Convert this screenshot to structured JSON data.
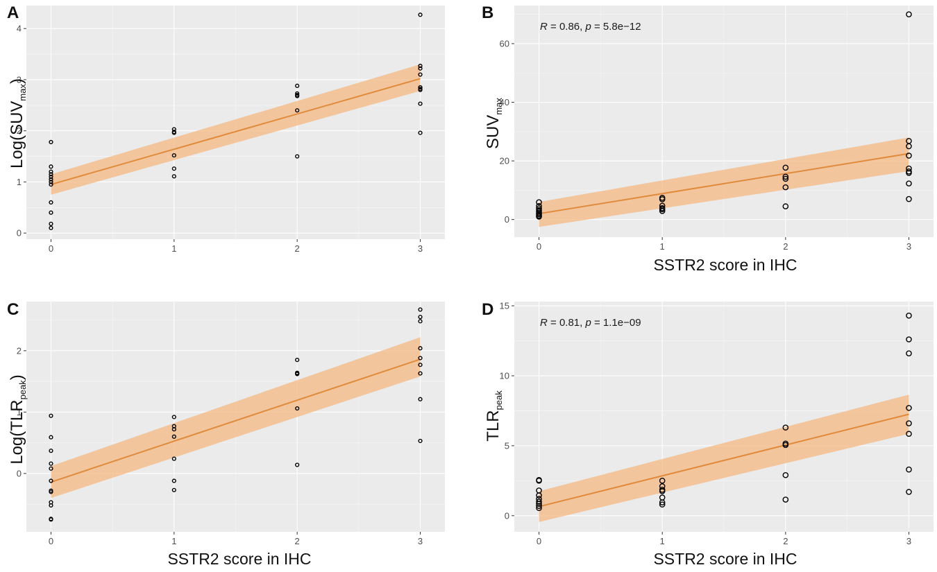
{
  "colors": {
    "panel_background": "#ebebeb",
    "grid_major": "#ffffff",
    "grid_minor": "#f5f5f5",
    "fit_line": "#e08a3c",
    "confidence_band": "#f4b882",
    "points": "#000000"
  },
  "chart_data": [
    {
      "panel": "A",
      "type": "scatter",
      "title": "",
      "xlabel": "",
      "ylabel_main": "Log(SUV",
      "ylabel_sub": "max",
      "ylabel_close": ")",
      "annotation": null,
      "xlim": [
        -0.2,
        3.2
      ],
      "ylim": [
        -0.12,
        4.45
      ],
      "xticks": [
        0,
        1,
        2,
        3
      ],
      "yticks": [
        0,
        1,
        2,
        3,
        4
      ],
      "grid": true,
      "points": {
        "x": [
          0,
          0,
          0,
          0,
          0,
          0,
          0,
          0,
          0,
          0,
          0,
          0,
          1,
          1,
          1,
          1,
          1,
          1,
          2,
          2,
          2,
          2,
          2,
          2,
          3,
          3,
          3,
          3,
          3,
          3,
          3,
          3,
          3
        ],
        "y": [
          1.78,
          1.3,
          1.2,
          1.15,
          1.1,
          1.05,
          0.95,
          0.6,
          0.4,
          0.18,
          0.1,
          1.0,
          2.03,
          1.96,
          1.52,
          1.26,
          1.11,
          1.98,
          2.88,
          2.73,
          2.68,
          2.4,
          1.5,
          2.7,
          4.27,
          3.27,
          3.22,
          3.1,
          2.85,
          2.8,
          2.53,
          1.96,
          2.82
        ]
      },
      "fit": {
        "x": [
          0,
          3
        ],
        "y": [
          0.95,
          3.02
        ]
      },
      "band": {
        "x": [
          0,
          3
        ],
        "lower": [
          0.75,
          2.78
        ],
        "upper": [
          1.15,
          3.3
        ]
      }
    },
    {
      "panel": "B",
      "type": "scatter",
      "title": "",
      "xlabel": "SSTR2 score in IHC",
      "ylabel_main": "SUV",
      "ylabel_sub": "max",
      "ylabel_close": "",
      "annotation": {
        "r_label": "R",
        "r_text": " = 0.86, ",
        "p_label": "p",
        "p_text": " = 5.8e−12"
      },
      "xlim": [
        -0.2,
        3.2
      ],
      "ylim": [
        -6,
        73
      ],
      "xticks": [
        0,
        1,
        2,
        3
      ],
      "yticks": [
        0,
        20,
        40,
        60
      ],
      "grid": true,
      "points": {
        "x": [
          0,
          0,
          0,
          0,
          0,
          0,
          0,
          0,
          0,
          1,
          1,
          1,
          1,
          1,
          1,
          2,
          2,
          2,
          2,
          2,
          3,
          3,
          3,
          3,
          3,
          3,
          3,
          3,
          3
        ],
        "y": [
          5.9,
          4.6,
          3.8,
          3.2,
          2.7,
          2.2,
          1.8,
          1.3,
          1.0,
          7.4,
          6.9,
          4.7,
          3.9,
          3.5,
          2.9,
          17.7,
          14.6,
          13.9,
          11.0,
          4.5,
          70.0,
          26.8,
          25.0,
          21.8,
          17.4,
          16.4,
          15.9,
          12.3,
          7.0
        ]
      },
      "fit": {
        "x": [
          0,
          3
        ],
        "y": [
          2.0,
          22.5
        ]
      },
      "band": {
        "x": [
          0,
          3
        ],
        "lower": [
          -2.5,
          16.5
        ],
        "upper": [
          6.0,
          28.0
        ]
      }
    },
    {
      "panel": "C",
      "type": "scatter",
      "title": "",
      "xlabel": "SSTR2 score in IHC",
      "ylabel_main": "Log(TLR",
      "ylabel_sub": "peak",
      "ylabel_close": ")",
      "annotation": null,
      "xlim": [
        -0.2,
        3.2
      ],
      "ylim": [
        -0.95,
        2.8
      ],
      "xticks": [
        0,
        1,
        2,
        3
      ],
      "yticks": [
        0,
        1,
        2
      ],
      "grid": true,
      "points": {
        "x": [
          0,
          0,
          0,
          0,
          0,
          0,
          0,
          0,
          0,
          0,
          0,
          0,
          1,
          1,
          1,
          1,
          1,
          1,
          1,
          2,
          2,
          2,
          2,
          2,
          2,
          3,
          3,
          3,
          3,
          3,
          3,
          3,
          3,
          3
        ],
        "y": [
          0.94,
          0.59,
          0.37,
          0.16,
          0.08,
          -0.12,
          -0.28,
          -0.3,
          -0.47,
          -0.52,
          -0.74,
          -0.75,
          0.92,
          0.77,
          0.72,
          0.6,
          0.24,
          -0.12,
          -0.27,
          1.85,
          1.64,
          1.62,
          1.63,
          1.06,
          0.14,
          1.63,
          2.67,
          2.55,
          2.48,
          2.04,
          1.88,
          1.77,
          1.21,
          0.53
        ]
      },
      "fit": {
        "x": [
          0,
          3
        ],
        "y": [
          -0.14,
          1.86
        ]
      },
      "band": {
        "x": [
          0,
          3
        ],
        "lower": [
          -0.4,
          1.58
        ],
        "upper": [
          0.12,
          2.22
        ]
      }
    },
    {
      "panel": "D",
      "type": "scatter",
      "title": "",
      "xlabel": "SSTR2 score in IHC",
      "ylabel_main": "TLR",
      "ylabel_sub": "peak",
      "ylabel_close": "",
      "annotation": {
        "r_label": "R",
        "r_text": " = 0.81, ",
        "p_label": "p",
        "p_text": " = 1.1e−09"
      },
      "xlim": [
        -0.2,
        3.2
      ],
      "ylim": [
        -1.15,
        15.3
      ],
      "xticks": [
        0,
        1,
        2,
        3
      ],
      "yticks": [
        0,
        5,
        10,
        15
      ],
      "grid": true,
      "points": {
        "x": [
          0,
          0,
          0,
          0,
          0,
          0,
          0,
          0,
          0,
          1,
          1,
          1,
          1,
          1,
          1,
          1,
          2,
          2,
          2,
          2,
          2,
          3,
          3,
          3,
          3,
          3,
          3,
          3,
          3
        ],
        "y": [
          2.55,
          2.5,
          1.8,
          1.45,
          1.2,
          1.0,
          0.85,
          0.7,
          0.55,
          2.5,
          2.1,
          1.85,
          1.3,
          0.95,
          0.8,
          1.75,
          6.3,
          5.15,
          5.05,
          2.9,
          1.15,
          14.3,
          12.6,
          11.6,
          7.7,
          6.6,
          5.85,
          3.3,
          1.7
        ]
      },
      "fit": {
        "x": [
          0,
          3
        ],
        "y": [
          0.65,
          7.25
        ]
      },
      "band": {
        "x": [
          0,
          3
        ],
        "lower": [
          -0.45,
          5.85
        ],
        "upper": [
          1.75,
          8.65
        ]
      }
    }
  ]
}
